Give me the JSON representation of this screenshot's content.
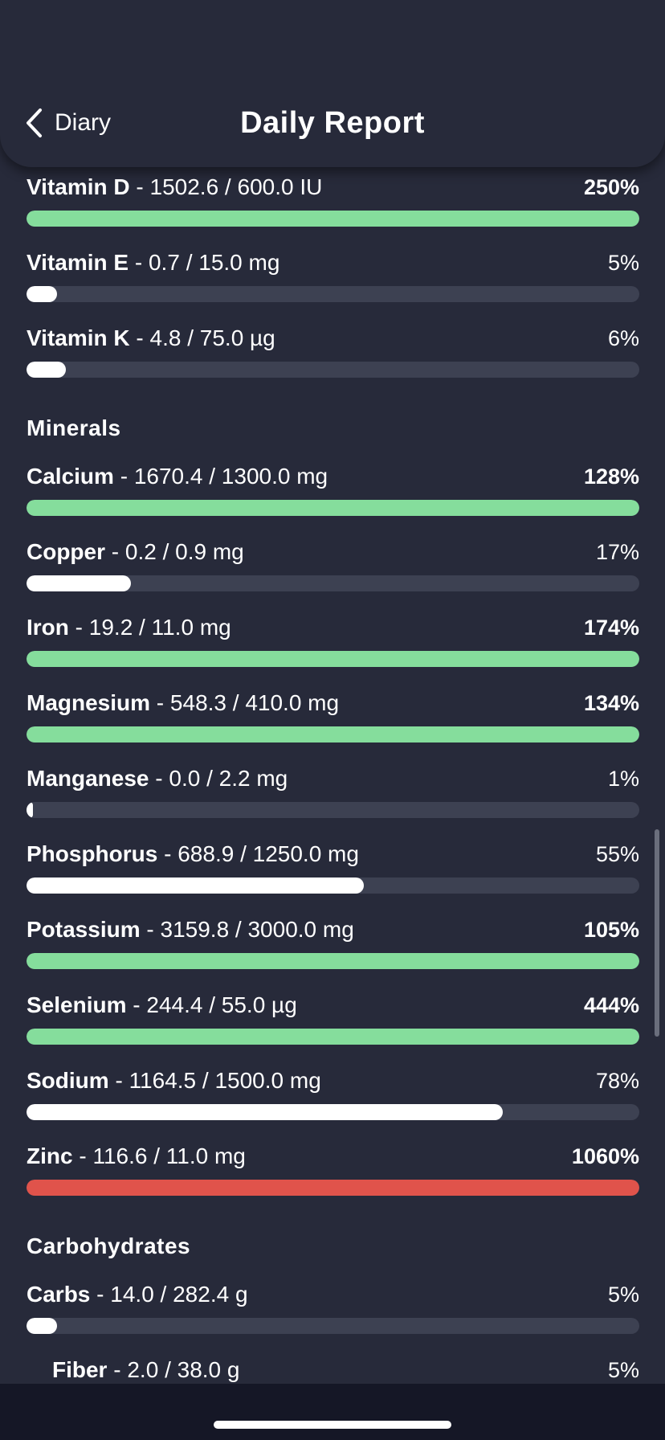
{
  "header": {
    "back_label": "Diary",
    "title": "Daily Report"
  },
  "colors": {
    "background": "#272a3a",
    "bar_track": "#3d4152",
    "bar_normal": "#ffffff",
    "bar_met": "#85dd9c",
    "bar_excess": "#e0534b"
  },
  "vitamins": [
    {
      "name": "Vitamin D",
      "values": "1502.6 / 600.0 IU",
      "percent_label": "250%",
      "fill": 1.0,
      "status": "met"
    },
    {
      "name": "Vitamin E",
      "values": "0.7 / 15.0 mg",
      "percent_label": "5%",
      "fill": 0.05,
      "status": "normal"
    },
    {
      "name": "Vitamin K",
      "values": "4.8 / 75.0 µg",
      "percent_label": "6%",
      "fill": 0.064,
      "status": "normal"
    }
  ],
  "minerals_heading": "Minerals",
  "minerals": [
    {
      "name": "Calcium",
      "values": "1670.4 / 1300.0 mg",
      "percent_label": "128%",
      "fill": 1.0,
      "status": "met"
    },
    {
      "name": "Copper",
      "values": "0.2 / 0.9 mg",
      "percent_label": "17%",
      "fill": 0.17,
      "status": "normal"
    },
    {
      "name": "Iron",
      "values": "19.2 / 11.0 mg",
      "percent_label": "174%",
      "fill": 1.0,
      "status": "met"
    },
    {
      "name": "Magnesium",
      "values": "548.3 / 410.0 mg",
      "percent_label": "134%",
      "fill": 1.0,
      "status": "met"
    },
    {
      "name": "Manganese",
      "values": "0.0 / 2.2 mg",
      "percent_label": "1%",
      "fill": 0.01,
      "status": "normal"
    },
    {
      "name": "Phosphorus",
      "values": "688.9 / 1250.0 mg",
      "percent_label": "55%",
      "fill": 0.55,
      "status": "normal"
    },
    {
      "name": "Potassium",
      "values": "3159.8 / 3000.0 mg",
      "percent_label": "105%",
      "fill": 1.0,
      "status": "met"
    },
    {
      "name": "Selenium",
      "values": "244.4 / 55.0 µg",
      "percent_label": "444%",
      "fill": 1.0,
      "status": "met"
    },
    {
      "name": "Sodium",
      "values": "1164.5 / 1500.0 mg",
      "percent_label": "78%",
      "fill": 0.777,
      "status": "normal"
    },
    {
      "name": "Zinc",
      "values": "116.6 / 11.0 mg",
      "percent_label": "1060%",
      "fill": 1.0,
      "status": "excess"
    }
  ],
  "carbs_heading": "Carbohydrates",
  "carbohydrates": [
    {
      "name": "Carbs",
      "values": "14.0 / 282.4 g",
      "percent_label": "5%",
      "fill": 0.05,
      "status": "normal",
      "indent": false
    },
    {
      "name": "Fiber",
      "values": "2.0 / 38.0 g",
      "percent_label": "5%",
      "fill": 0.05,
      "status": "normal",
      "indent": true
    }
  ]
}
